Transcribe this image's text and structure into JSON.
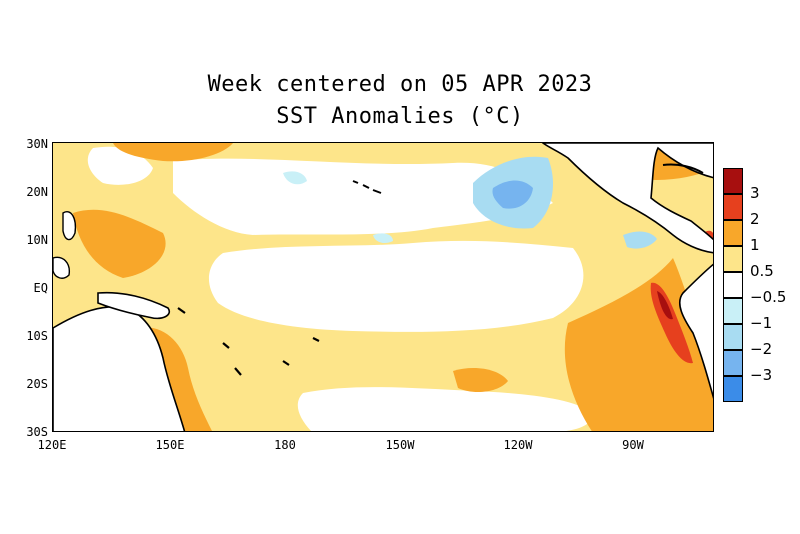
{
  "title": {
    "line1": "Week centered on 05 APR 2023",
    "line2": "SST Anomalies (°C)"
  },
  "axes": {
    "y_labels": [
      "30N",
      "20N",
      "10N",
      "EQ",
      "10S",
      "20S",
      "30S"
    ],
    "x_labels": [
      "120E",
      "150E",
      "180",
      "150W",
      "120W",
      "90W"
    ]
  },
  "legend": {
    "labels": [
      "3",
      "2",
      "1",
      "0.5",
      "−0.5",
      "−1",
      "−2",
      "−3"
    ]
  },
  "colors": {
    "neg3": "#3b8ce8",
    "neg2": "#76b4ef",
    "neg1": "#a8dcf2",
    "neg05": "#c9f0f7",
    "neutral": "#ffffff",
    "pos05": "#fde58a",
    "pos1": "#f8a72a",
    "pos2": "#e6401e",
    "pos3": "#a70f0f",
    "land": "#ffffff",
    "coast": "#000000"
  }
}
